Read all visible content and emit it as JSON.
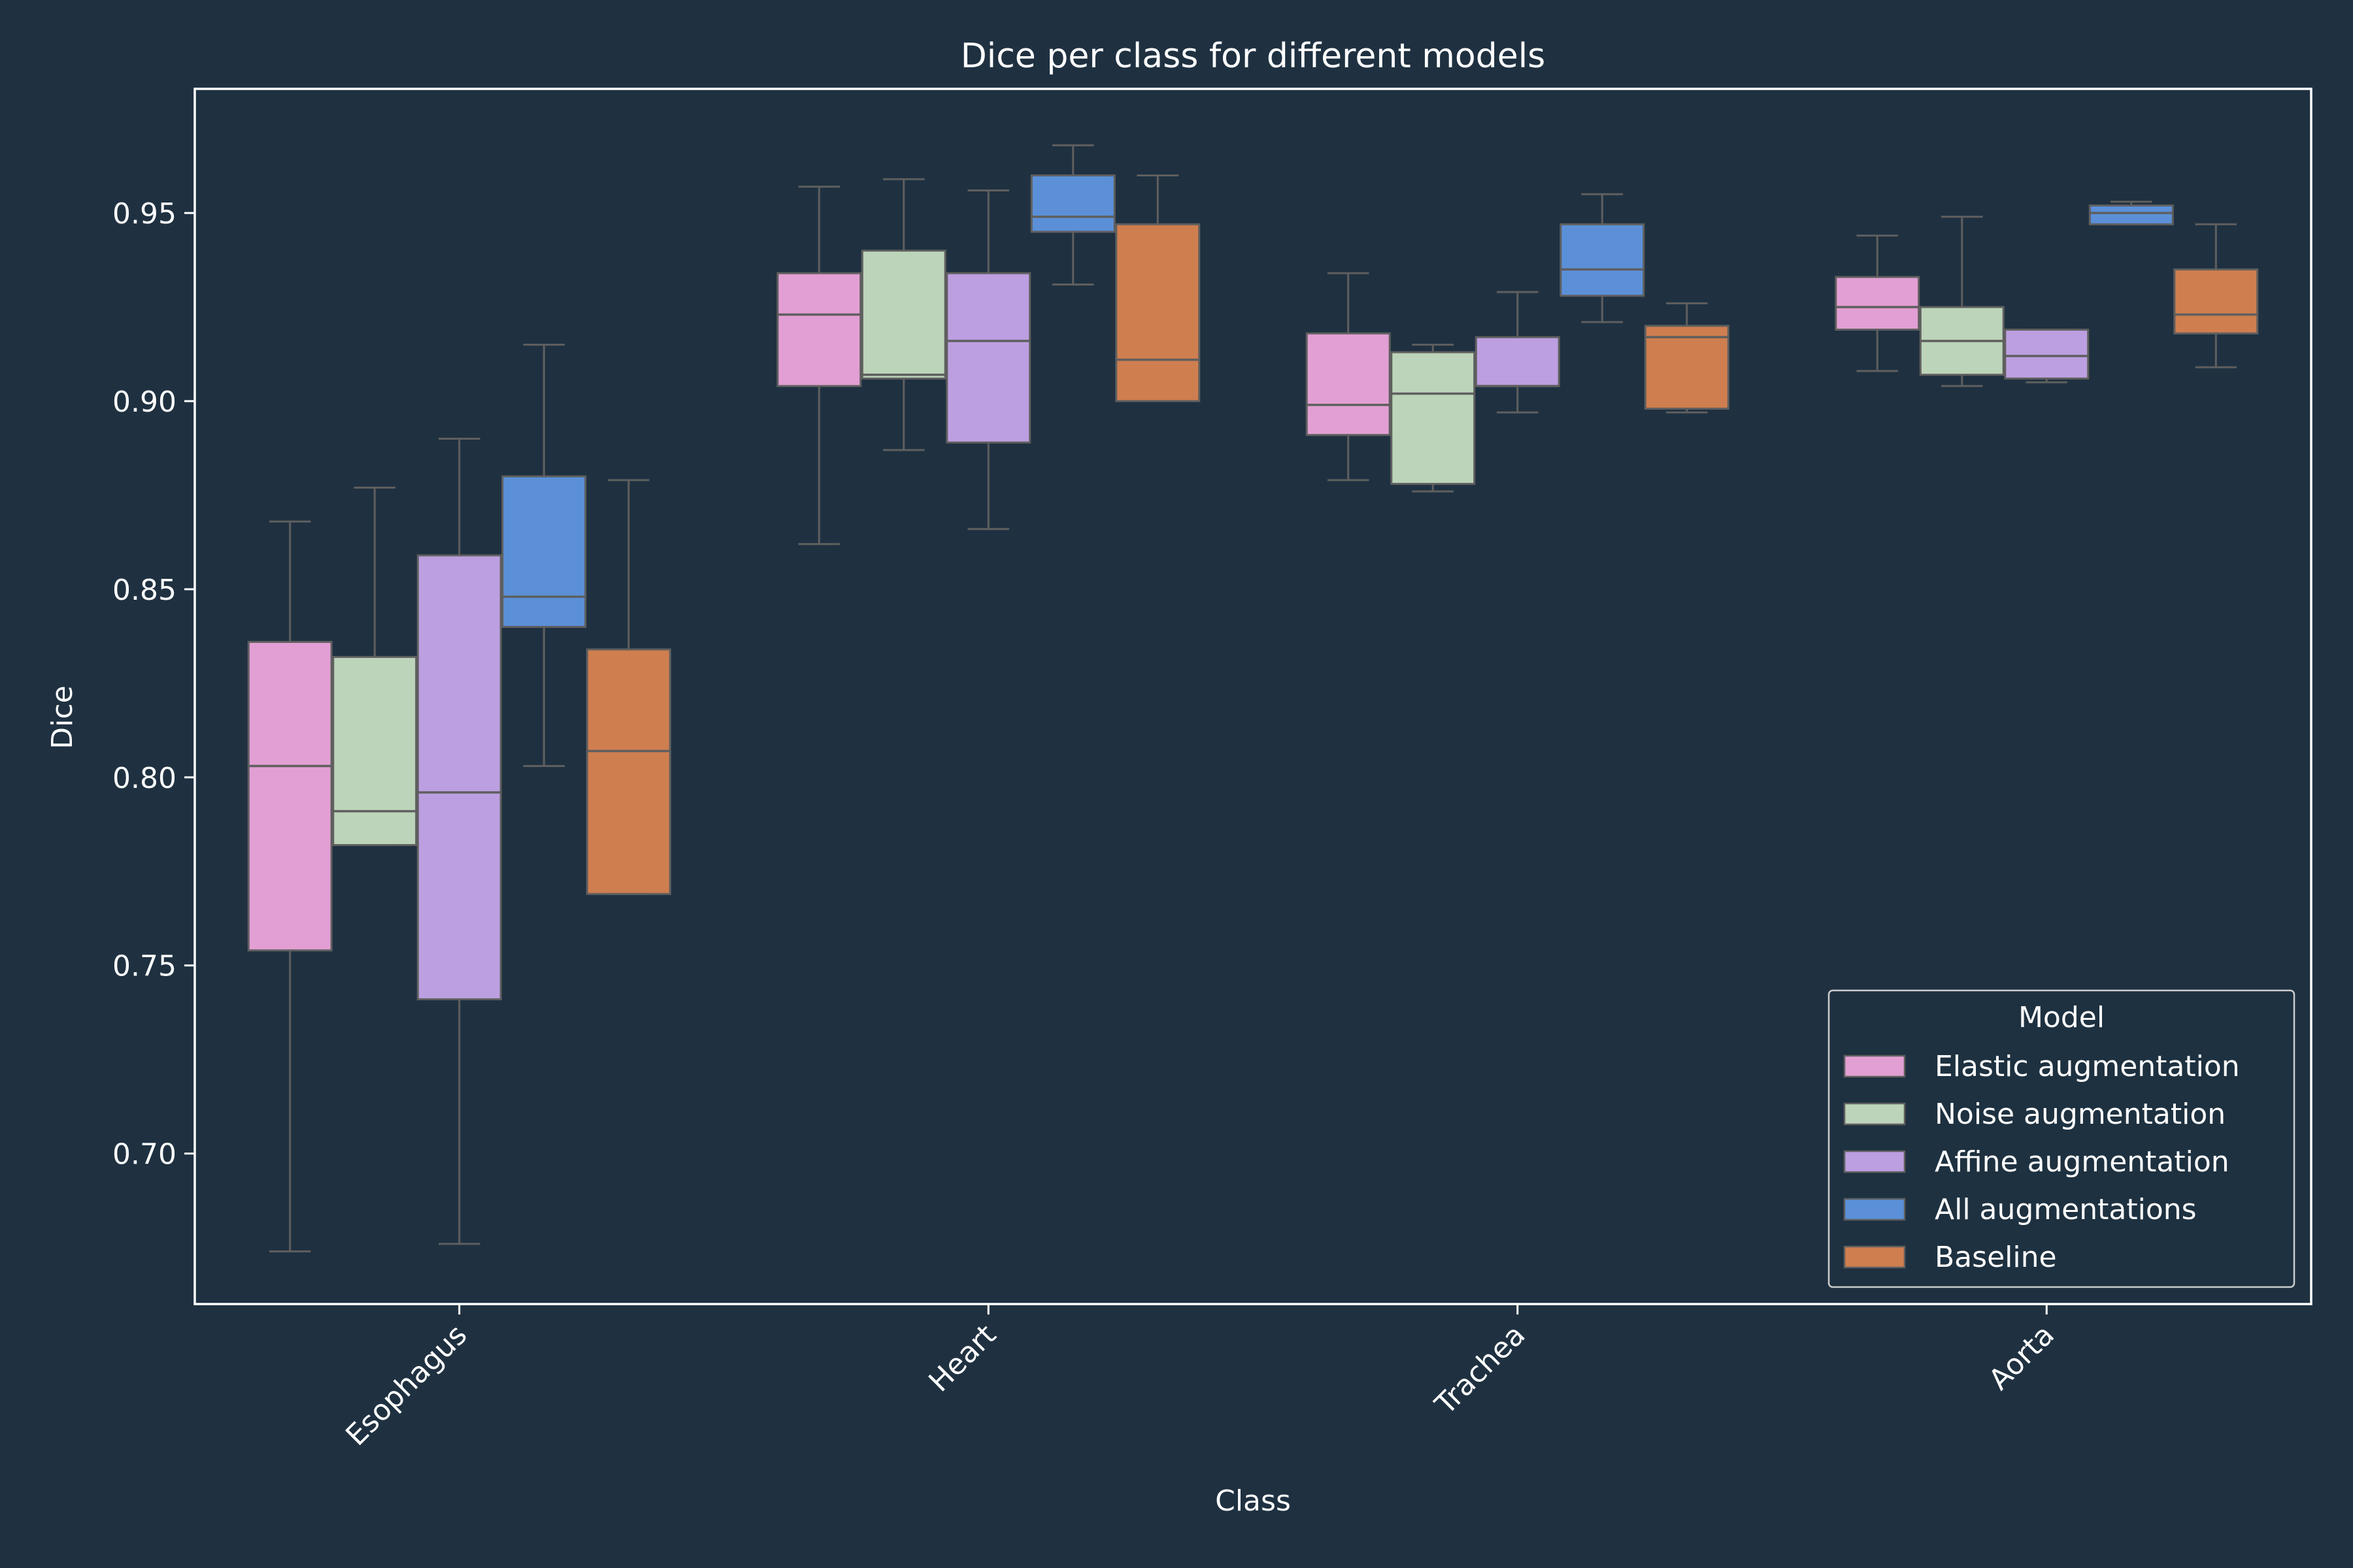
{
  "chart_data": {
    "type": "box",
    "title": "Dice per class for different models",
    "xlabel": "Class",
    "ylabel": "Dice",
    "ylim": [
      0.66,
      0.983
    ],
    "yticks": [
      0.7,
      0.75,
      0.8,
      0.85,
      0.9,
      0.95
    ],
    "ytick_labels": [
      "0.70",
      "0.75",
      "0.80",
      "0.85",
      "0.90",
      "0.95"
    ],
    "categories": [
      "Esophagus",
      "Heart",
      "Trachea",
      "Aorta"
    ],
    "legend": {
      "title": "Model",
      "position": "lower-right"
    },
    "colors": {
      "background": "#1f3141",
      "axes": "#ffffff",
      "whisker": "#5f5f5f"
    },
    "series": [
      {
        "name": "Elastic augmentation",
        "color": "#e29fd3",
        "boxes": [
          {
            "whislo": 0.674,
            "q1": 0.754,
            "med": 0.803,
            "q3": 0.836,
            "whishi": 0.868
          },
          {
            "whislo": 0.862,
            "q1": 0.904,
            "med": 0.923,
            "q3": 0.934,
            "whishi": 0.957
          },
          {
            "whislo": 0.879,
            "q1": 0.891,
            "med": 0.899,
            "q3": 0.918,
            "whishi": 0.934
          },
          {
            "whislo": 0.908,
            "q1": 0.919,
            "med": 0.925,
            "q3": 0.933,
            "whishi": 0.944
          }
        ]
      },
      {
        "name": "Noise augmentation",
        "color": "#bcd4b9",
        "boxes": [
          {
            "whislo": 0.782,
            "q1": 0.782,
            "med": 0.791,
            "q3": 0.832,
            "whishi": 0.877
          },
          {
            "whislo": 0.887,
            "q1": 0.906,
            "med": 0.907,
            "q3": 0.94,
            "whishi": 0.959
          },
          {
            "whislo": 0.876,
            "q1": 0.878,
            "med": 0.902,
            "q3": 0.913,
            "whishi": 0.915
          },
          {
            "whislo": 0.904,
            "q1": 0.907,
            "med": 0.916,
            "q3": 0.925,
            "whishi": 0.949
          }
        ]
      },
      {
        "name": "Affine augmentation",
        "color": "#bc9fe0",
        "boxes": [
          {
            "whislo": 0.676,
            "q1": 0.741,
            "med": 0.796,
            "q3": 0.859,
            "whishi": 0.89
          },
          {
            "whislo": 0.866,
            "q1": 0.889,
            "med": 0.916,
            "q3": 0.934,
            "whishi": 0.956
          },
          {
            "whislo": 0.897,
            "q1": 0.904,
            "med": 0.904,
            "q3": 0.917,
            "whishi": 0.929
          },
          {
            "whislo": 0.905,
            "q1": 0.906,
            "med": 0.912,
            "q3": 0.919,
            "whishi": 0.919
          }
        ]
      },
      {
        "name": "All augmentations",
        "color": "#5b90d8",
        "boxes": [
          {
            "whislo": 0.803,
            "q1": 0.84,
            "med": 0.848,
            "q3": 0.88,
            "whishi": 0.915
          },
          {
            "whislo": 0.931,
            "q1": 0.945,
            "med": 0.949,
            "q3": 0.96,
            "whishi": 0.968
          },
          {
            "whislo": 0.921,
            "q1": 0.928,
            "med": 0.935,
            "q3": 0.947,
            "whishi": 0.955
          },
          {
            "whislo": 0.947,
            "q1": 0.947,
            "med": 0.95,
            "q3": 0.952,
            "whishi": 0.953
          }
        ]
      },
      {
        "name": "Baseline",
        "color": "#cf7e4f",
        "boxes": [
          {
            "whislo": 0.769,
            "q1": 0.769,
            "med": 0.807,
            "q3": 0.834,
            "whishi": 0.879
          },
          {
            "whislo": 0.9,
            "q1": 0.9,
            "med": 0.911,
            "q3": 0.947,
            "whishi": 0.96
          },
          {
            "whislo": 0.897,
            "q1": 0.898,
            "med": 0.917,
            "q3": 0.92,
            "whishi": 0.926
          },
          {
            "whislo": 0.909,
            "q1": 0.918,
            "med": 0.923,
            "q3": 0.935,
            "whishi": 0.947
          }
        ]
      }
    ]
  }
}
